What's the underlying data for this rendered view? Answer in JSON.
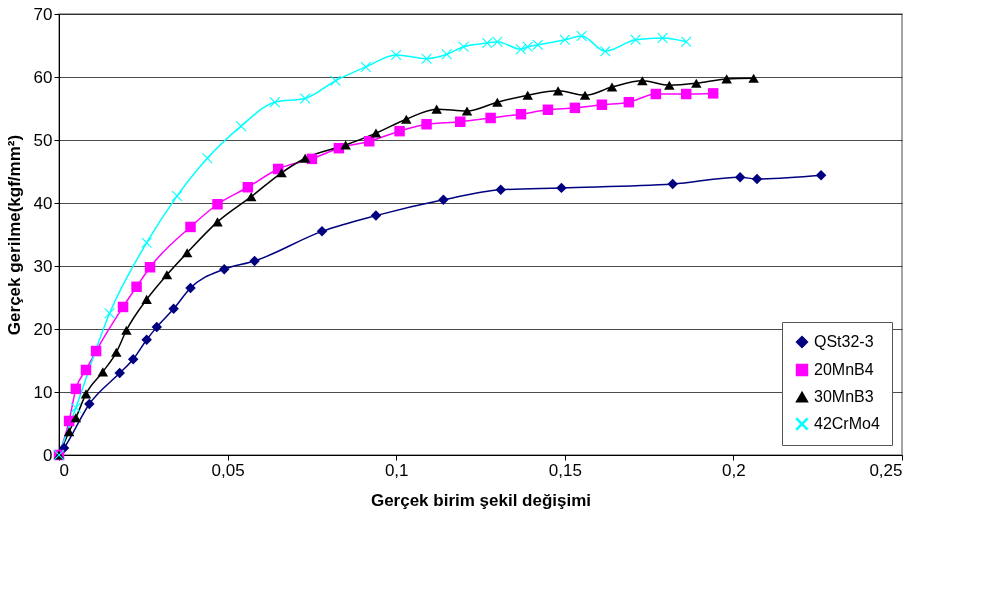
{
  "chart_data": {
    "type": "line",
    "xlabel": "Gerçek birim şekil değişimi",
    "ylabel": "Gerçek gerilme(kgf/mm²)",
    "xlim": [
      0,
      0.25
    ],
    "xticks": [
      0,
      {
        "value": 0.05,
        "label": "0,05"
      },
      {
        "value": 0.1,
        "label": "0,1"
      },
      {
        "value": 0.15,
        "label": "0,15"
      },
      {
        "value": 0.2,
        "label": "0,2"
      },
      {
        "value": 0.25,
        "label": "0,25"
      }
    ],
    "ylim": [
      0,
      70
    ],
    "yticks": [
      0,
      10,
      20,
      30,
      40,
      50,
      60,
      70
    ],
    "grid": "y",
    "legend": "bottom right",
    "line_style": "solid",
    "series": [
      {
        "name": "QSt32-3",
        "color": "#000080",
        "marker": "diamond",
        "x": [
          0,
          0.0015,
          0.009,
          0.018,
          0.022,
          0.026,
          0.029,
          0.034,
          0.039,
          0.049,
          0.058,
          0.078,
          0.094,
          0.114,
          0.131,
          0.149,
          0.182,
          0.202,
          0.207,
          0.226
        ],
        "values": [
          0,
          1.1,
          8.1,
          13.0,
          15.2,
          18.3,
          20.3,
          23.2,
          26.5,
          29.5,
          30.8,
          35.5,
          38.0,
          40.5,
          42.1,
          42.4,
          43.0,
          44.1,
          43.8,
          44.4
        ]
      },
      {
        "name": "20MnB4",
        "color": "#ff00ff",
        "marker": "square",
        "x": [
          0,
          0.003,
          0.005,
          0.008,
          0.011,
          0.019,
          0.023,
          0.027,
          0.039,
          0.047,
          0.056,
          0.065,
          0.075,
          0.083,
          0.092,
          0.101,
          0.109,
          0.119,
          0.128,
          0.137,
          0.145,
          0.153,
          0.161,
          0.169,
          0.177,
          0.186,
          0.194
        ],
        "values": [
          0,
          5.4,
          10.5,
          13.5,
          16.5,
          23.5,
          26.7,
          29.8,
          36.2,
          39.8,
          42.5,
          45.4,
          47.0,
          48.7,
          49.8,
          51.4,
          52.5,
          52.9,
          53.5,
          54.1,
          54.8,
          55.1,
          55.6,
          56.0,
          57.3,
          57.3,
          57.4
        ]
      },
      {
        "name": "30MnB3",
        "color": "#000000",
        "marker": "triangle",
        "x": [
          0,
          0.003,
          0.005,
          0.008,
          0.013,
          0.017,
          0.02,
          0.026,
          0.032,
          0.038,
          0.047,
          0.057,
          0.066,
          0.073,
          0.085,
          0.094,
          0.103,
          0.112,
          0.121,
          0.13,
          0.139,
          0.148,
          0.156,
          0.164,
          0.173,
          0.181,
          0.189,
          0.198,
          0.206
        ],
        "values": [
          0,
          3.7,
          5.9,
          9.7,
          13.2,
          16.3,
          19.8,
          24.7,
          28.6,
          32.1,
          37.0,
          41.0,
          44.8,
          47.1,
          49.2,
          51.1,
          53.3,
          54.9,
          54.6,
          56.0,
          57.1,
          57.8,
          57.1,
          58.4,
          59.4,
          58.7,
          59.0,
          59.7,
          59.8
        ]
      },
      {
        "name": "42CrMo4",
        "color": "#00ffff",
        "marker": "cross",
        "x": [
          0,
          0.005,
          0.015,
          0.026,
          0.035,
          0.044,
          0.054,
          0.064,
          0.073,
          0.082,
          0.091,
          0.1,
          0.109,
          0.115,
          0.12,
          0.127,
          0.13,
          0.137,
          0.139,
          0.142,
          0.15,
          0.155,
          0.162,
          0.171,
          0.179,
          0.186
        ],
        "values": [
          0,
          7.5,
          22.5,
          33.7,
          41.1,
          47.1,
          52.2,
          56.0,
          56.6,
          59.4,
          61.6,
          63.5,
          62.9,
          63.6,
          64.8,
          65.4,
          65.6,
          64.4,
          64.8,
          65.1,
          65.9,
          66.5,
          64.1,
          65.9,
          66.2,
          65.6
        ]
      }
    ]
  }
}
